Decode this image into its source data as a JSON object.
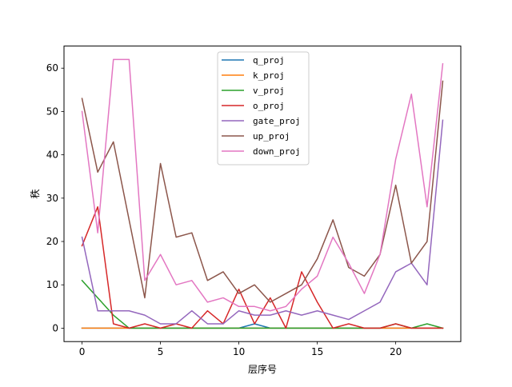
{
  "chart_data": {
    "type": "line",
    "title": "",
    "xlabel": "层序号",
    "ylabel": "秩",
    "xlim": [
      -1.15,
      24.15
    ],
    "ylim": [
      -3.1,
      65.1
    ],
    "xticks": [
      0,
      5,
      10,
      15,
      20
    ],
    "yticks": [
      0,
      10,
      20,
      30,
      40,
      50,
      60
    ],
    "grid": false,
    "legend_position": "upper center",
    "x": [
      0,
      1,
      2,
      3,
      4,
      5,
      6,
      7,
      8,
      9,
      10,
      11,
      12,
      13,
      14,
      15,
      16,
      17,
      18,
      19,
      20,
      21,
      22,
      23
    ],
    "series": [
      {
        "name": "q_proj",
        "color": "#1f77b4",
        "values": [
          0,
          0,
          0,
          0,
          0,
          0,
          0,
          0,
          0,
          0,
          0,
          1,
          0,
          0,
          0,
          0,
          0,
          0,
          0,
          0,
          0,
          0,
          0,
          0
        ]
      },
      {
        "name": "k_proj",
        "color": "#ff7f0e",
        "values": [
          0,
          0,
          0,
          0,
          0,
          0,
          0,
          0,
          0,
          0,
          0,
          0,
          0,
          0,
          0,
          0,
          0,
          0,
          0,
          0,
          0,
          0,
          0,
          0
        ]
      },
      {
        "name": "v_proj",
        "color": "#2ca02c",
        "values": [
          11,
          7,
          3,
          0,
          0,
          0,
          0,
          0,
          0,
          0,
          0,
          0,
          0,
          0,
          0,
          0,
          0,
          0,
          0,
          0,
          1,
          0,
          1,
          0
        ]
      },
      {
        "name": "o_proj",
        "color": "#d62728",
        "values": [
          19,
          28,
          1,
          0,
          1,
          0,
          1,
          0,
          4,
          1,
          9,
          1,
          7,
          0,
          13,
          6,
          0,
          1,
          0,
          0,
          1,
          0,
          0,
          0
        ]
      },
      {
        "name": "gate_proj",
        "color": "#9467bd",
        "values": [
          21,
          4,
          4,
          4,
          3,
          1,
          1,
          4,
          1,
          1,
          4,
          3,
          3,
          4,
          3,
          4,
          3,
          2,
          4,
          6,
          13,
          15,
          10,
          48
        ]
      },
      {
        "name": "up_proj",
        "color": "#8c564b",
        "values": [
          53,
          36,
          43,
          25,
          7,
          38,
          21,
          22,
          11,
          13,
          8,
          10,
          6,
          8,
          10,
          16,
          25,
          14,
          12,
          17,
          33,
          15,
          20,
          57
        ]
      },
      {
        "name": "down_proj",
        "color": "#e377c2",
        "values": [
          50,
          22,
          62,
          62,
          11,
          17,
          10,
          11,
          6,
          7,
          5,
          5,
          4,
          5,
          9,
          12,
          21,
          15,
          8,
          17,
          39,
          54,
          28,
          61
        ]
      }
    ]
  }
}
